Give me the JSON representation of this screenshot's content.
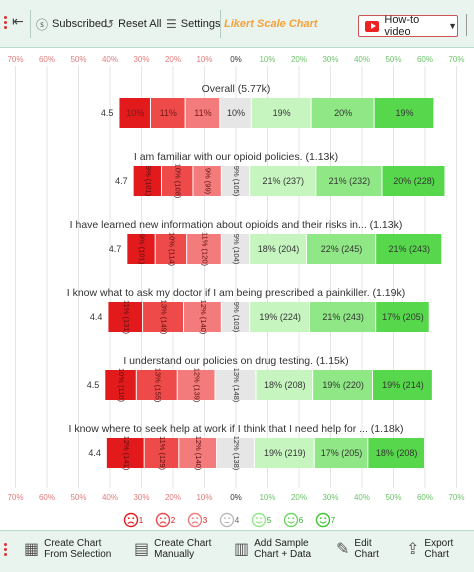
{
  "toolbar": {
    "subscribed": "Subscribed",
    "reset_all": "Reset All",
    "settings": "Settings",
    "title": "Likert Scale Chart",
    "howto": "How-to video"
  },
  "bottombar": {
    "create_from_selection": "Create Chart From Selection",
    "create_manually": "Create Chart Manually",
    "add_sample": "Add Sample Chart + Data",
    "edit_chart": "Edit Chart",
    "export_chart": "Export Chart"
  },
  "chart_data": {
    "type": "bar",
    "subtype": "diverging-stacked-likert",
    "scale_labels": [
      "1",
      "2",
      "3",
      "4",
      "5",
      "6",
      "7"
    ],
    "axis_ticks": [
      "70%",
      "60%",
      "50%",
      "40%",
      "30%",
      "20%",
      "10%",
      "0%",
      "10%",
      "20%",
      "30%",
      "40%",
      "50%",
      "60%",
      "70%"
    ],
    "xlim": [
      -70,
      70
    ],
    "colors": [
      "#e31a1c",
      "#ee4a4a",
      "#f47b7b",
      "#e6e6e6",
      "#c6f5c0",
      "#8fe885",
      "#57d84c"
    ],
    "questions": [
      {
        "title": "Overall (5.77k)",
        "mean": "4.5",
        "values": [
          10,
          11,
          11,
          10,
          19,
          20,
          19
        ],
        "labels": [
          "10%",
          "11%",
          "11%",
          "10%",
          "19%",
          "20%",
          "19%"
        ],
        "vertical": false
      },
      {
        "title": "I am familiar with our opioid policies. (1.13k)",
        "mean": "4.7",
        "values": [
          9,
          10,
          9,
          9,
          21,
          21,
          20
        ],
        "labels": [
          "9% (101)",
          "10% (108)",
          "9% (99)",
          "9% (105)",
          "21% (237)",
          "21% (232)",
          "20% (228)"
        ],
        "vertical": true
      },
      {
        "title": "I have learned new information about opioids and their risks in... (1.13k)",
        "mean": "4.7",
        "values": [
          9,
          10,
          11,
          9,
          18,
          22,
          21
        ],
        "labels": [
          "9% (101)",
          "10% (114)",
          "11% (120)",
          "9% (104)",
          "18% (204)",
          "22% (245)",
          "21% (243)"
        ],
        "vertical": true
      },
      {
        "title": "I know what to ask my doctor if I am being prescribed a painkiller. (1.19k)",
        "mean": "4.4",
        "values": [
          11,
          13,
          12,
          9,
          19,
          21,
          17
        ],
        "labels": [
          "11% (131)",
          "13% (149)",
          "12% (140)",
          "9% (103)",
          "19% (224)",
          "21% (243)",
          "17% (205)"
        ],
        "vertical": true
      },
      {
        "title": "I understand our policies on drug testing. (1.15k)",
        "mean": "4.5",
        "values": [
          10,
          13,
          12,
          13,
          18,
          19,
          19
        ],
        "labels": [
          "10% (110)",
          "13% (155)",
          "12% (139)",
          "13% (148)",
          "18% (208)",
          "19% (220)",
          "19% (214)"
        ],
        "vertical": true
      },
      {
        "title": "I know where to seek help at work if I think that I need help for ... (1.18k)",
        "mean": "4.4",
        "values": [
          12,
          11,
          12,
          12,
          19,
          17,
          18
        ],
        "labels": [
          "12% (141)",
          "11% (129)",
          "12% (140)",
          "12% (138)",
          "19% (219)",
          "17% (205)",
          "18% (208)"
        ],
        "vertical": true
      }
    ]
  }
}
